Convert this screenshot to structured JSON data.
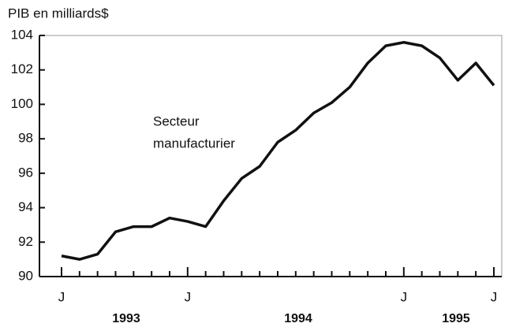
{
  "chart_data": {
    "type": "line",
    "title": "PIB en milliards$",
    "annotation": [
      "Secteur",
      "manufacturier"
    ],
    "categories": [
      "J",
      null,
      null,
      null,
      null,
      null,
      null,
      "J",
      null,
      null,
      null,
      null,
      null,
      null,
      null,
      null,
      null,
      null,
      null,
      "J",
      null,
      null,
      null,
      null,
      "J"
    ],
    "year_labels": [
      "1993",
      "1994",
      "1995"
    ],
    "series": [
      {
        "name": "Secteur manufacturier",
        "color": "#111111",
        "values": [
          91.2,
          91.0,
          91.3,
          92.6,
          92.9,
          92.9,
          93.4,
          93.2,
          92.9,
          94.4,
          95.7,
          96.4,
          97.8,
          98.5,
          99.5,
          100.1,
          101.0,
          102.4,
          103.4,
          103.6,
          103.4,
          102.7,
          101.4,
          102.4,
          101.1
        ]
      }
    ],
    "ylim": [
      90,
      104
    ],
    "yticks": [
      90,
      92,
      94,
      96,
      98,
      100,
      102,
      104
    ]
  }
}
